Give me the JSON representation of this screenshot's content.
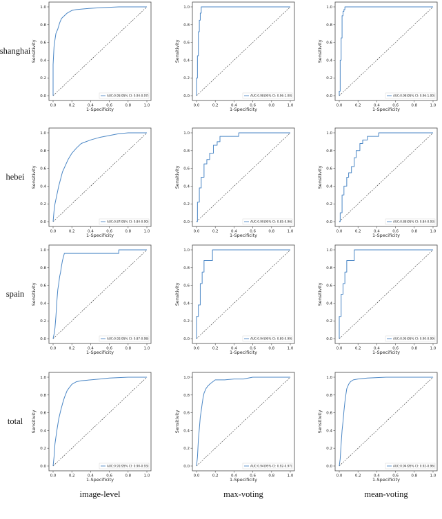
{
  "rows": [
    "shanghai",
    "hebei",
    "spain",
    "total"
  ],
  "columns": [
    "image-level",
    "max-voting",
    "mean-voting"
  ],
  "axes": {
    "xlabel": "1-Specificity",
    "ylabel": "Sensitivity",
    "xlim": [
      0,
      1
    ],
    "ylim": [
      0,
      1
    ],
    "ticks": [
      "0.0",
      "0.2",
      "0.4",
      "0.6",
      "0.8",
      "1.0"
    ]
  },
  "colors": {
    "roc": "#4a86c5",
    "diagonal": "#333333",
    "frame": "#444444"
  },
  "chart_data": [
    {
      "type": "line",
      "row": "shanghai",
      "column": "image-level",
      "legend": "AUC:0.95(95% CI: 0.94-0.97)",
      "legend_position": "lower-right",
      "series": [
        {
          "name": "AUC:0.95(95% CI: 0.94-0.97)",
          "x": [
            0,
            0,
            0.01,
            0.02,
            0.03,
            0.05,
            0.07,
            0.09,
            0.12,
            0.15,
            0.2,
            0.25,
            0.35,
            0.5,
            0.7,
            1
          ],
          "y": [
            0,
            0.35,
            0.55,
            0.63,
            0.7,
            0.75,
            0.82,
            0.87,
            0.9,
            0.93,
            0.96,
            0.97,
            0.98,
            0.99,
            1,
            1
          ]
        }
      ]
    },
    {
      "type": "line",
      "row": "shanghai",
      "column": "max-voting",
      "legend": "AUC:0.98(95% CI: 0.96-1.00)",
      "legend_position": "lower-right",
      "series": [
        {
          "name": "AUC:0.98(95% CI: 0.96-1.00)",
          "x": [
            0,
            0,
            0.01,
            0.01,
            0.02,
            0.02,
            0.03,
            0.03,
            0.04,
            0.04,
            0.05,
            0.05,
            0.06,
            1
          ],
          "y": [
            0,
            0.2,
            0.2,
            0.45,
            0.45,
            0.72,
            0.72,
            0.85,
            0.85,
            0.93,
            0.93,
            1,
            1,
            1
          ]
        }
      ]
    },
    {
      "type": "line",
      "row": "shanghai",
      "column": "mean-voting",
      "legend": "AUC:0.98(95% CI: 0.96-1.00)",
      "legend_position": "lower-right",
      "series": [
        {
          "name": "AUC:0.98(95% CI: 0.96-1.00)",
          "x": [
            0,
            0,
            0.01,
            0.01,
            0.02,
            0.02,
            0.03,
            0.03,
            0.04,
            0.04,
            0.05,
            0.05,
            0.06,
            0.06,
            1
          ],
          "y": [
            0,
            0.05,
            0.05,
            0.4,
            0.4,
            0.65,
            0.65,
            0.9,
            0.9,
            0.95,
            0.95,
            0.97,
            0.97,
            1,
            1
          ]
        }
      ]
    },
    {
      "type": "line",
      "row": "hebei",
      "column": "image-level",
      "legend": "AUC:0.87(95% CI: 0.84-0.90)",
      "legend_position": "lower-right",
      "series": [
        {
          "name": "AUC:0.87(95% CI: 0.84-0.90)",
          "x": [
            0,
            0.01,
            0.02,
            0.04,
            0.06,
            0.08,
            0.1,
            0.13,
            0.16,
            0.2,
            0.25,
            0.3,
            0.35,
            0.4,
            0.5,
            0.6,
            0.7,
            0.8,
            1
          ],
          "y": [
            0,
            0.12,
            0.2,
            0.3,
            0.4,
            0.48,
            0.56,
            0.63,
            0.7,
            0.77,
            0.83,
            0.88,
            0.9,
            0.92,
            0.95,
            0.97,
            0.99,
            1,
            1
          ]
        }
      ]
    },
    {
      "type": "line",
      "row": "hebei",
      "column": "max-voting",
      "legend": "AUC:0.90(95% CI: 0.85-0.96)",
      "legend_position": "lower-right",
      "series": [
        {
          "name": "AUC:0.90(95% CI: 0.85-0.96)",
          "x": [
            0,
            0.01,
            0.01,
            0.03,
            0.03,
            0.05,
            0.05,
            0.08,
            0.08,
            0.11,
            0.11,
            0.14,
            0.14,
            0.18,
            0.18,
            0.22,
            0.22,
            0.25,
            0.25,
            0.45,
            0.45,
            1
          ],
          "y": [
            0,
            0,
            0.22,
            0.22,
            0.38,
            0.38,
            0.5,
            0.5,
            0.65,
            0.65,
            0.7,
            0.7,
            0.77,
            0.77,
            0.86,
            0.86,
            0.9,
            0.9,
            0.96,
            0.96,
            1,
            1
          ]
        }
      ]
    },
    {
      "type": "line",
      "row": "hebei",
      "column": "mean-voting",
      "legend": "AUC:0.88(95% CI: 0.84-0.93)",
      "legend_position": "lower-right",
      "series": [
        {
          "name": "AUC:0.88(95% CI: 0.84-0.93)",
          "x": [
            0,
            0.01,
            0.01,
            0.03,
            0.03,
            0.05,
            0.05,
            0.08,
            0.08,
            0.1,
            0.1,
            0.13,
            0.13,
            0.16,
            0.16,
            0.18,
            0.18,
            0.22,
            0.22,
            0.25,
            0.25,
            0.3,
            0.3,
            0.42,
            0.42,
            1
          ],
          "y": [
            0,
            0,
            0.1,
            0.1,
            0.3,
            0.3,
            0.4,
            0.4,
            0.5,
            0.5,
            0.55,
            0.55,
            0.62,
            0.62,
            0.72,
            0.72,
            0.8,
            0.8,
            0.88,
            0.88,
            0.92,
            0.92,
            0.96,
            0.96,
            1,
            1
          ]
        }
      ]
    },
    {
      "type": "line",
      "row": "spain",
      "column": "image-level",
      "legend": "AUC:0.92(95% CI: 0.87-0.98)",
      "legend_position": "lower-right",
      "series": [
        {
          "name": "AUC:0.92(95% CI: 0.87-0.98)",
          "x": [
            0,
            0.01,
            0.02,
            0.03,
            0.04,
            0.05,
            0.06,
            0.07,
            0.08,
            0.09,
            0.1,
            0.11,
            0.12,
            0.7,
            0.7,
            1
          ],
          "y": [
            0,
            0.05,
            0.12,
            0.25,
            0.42,
            0.55,
            0.62,
            0.7,
            0.75,
            0.82,
            0.88,
            0.92,
            0.96,
            0.96,
            1,
            1
          ]
        }
      ]
    },
    {
      "type": "line",
      "row": "spain",
      "column": "max-voting",
      "legend": "AUC:0.94(95% CI: 0.89-0.99)",
      "legend_position": "lower-right",
      "series": [
        {
          "name": "AUC:0.94(95% CI: 0.89-0.99)",
          "x": [
            0,
            0,
            0.02,
            0.02,
            0.04,
            0.04,
            0.06,
            0.06,
            0.08,
            0.08,
            0.17,
            0.17,
            1
          ],
          "y": [
            0,
            0.25,
            0.25,
            0.38,
            0.38,
            0.62,
            0.62,
            0.75,
            0.75,
            0.88,
            0.88,
            1,
            1
          ]
        }
      ]
    },
    {
      "type": "line",
      "row": "spain",
      "column": "mean-voting",
      "legend": "AUC:0.95(95% CI: 0.90-0.99)",
      "legend_position": "lower-right",
      "series": [
        {
          "name": "AUC:0.95(95% CI: 0.90-0.99)",
          "x": [
            0,
            0,
            0.02,
            0.02,
            0.04,
            0.04,
            0.06,
            0.06,
            0.08,
            0.08,
            0.16,
            0.16,
            1
          ],
          "y": [
            0,
            0.25,
            0.25,
            0.5,
            0.5,
            0.62,
            0.62,
            0.75,
            0.75,
            0.88,
            0.88,
            1,
            1
          ]
        }
      ]
    },
    {
      "type": "line",
      "row": "total",
      "column": "image-level",
      "legend": "AUC:0.91(95% CI: 0.90-0.93)",
      "legend_position": "lower-right",
      "series": [
        {
          "name": "AUC:0.91(95% CI: 0.90-0.93)",
          "x": [
            0,
            0.01,
            0.02,
            0.04,
            0.06,
            0.08,
            0.1,
            0.12,
            0.15,
            0.2,
            0.25,
            0.3,
            0.4,
            0.5,
            0.6,
            0.8,
            1
          ],
          "y": [
            0,
            0.1,
            0.25,
            0.4,
            0.53,
            0.62,
            0.7,
            0.77,
            0.85,
            0.92,
            0.95,
            0.96,
            0.97,
            0.98,
            0.99,
            1,
            1
          ]
        }
      ]
    },
    {
      "type": "line",
      "row": "total",
      "column": "max-voting",
      "legend": "AUC:0.94(95% CI: 0.92-0.97)",
      "legend_position": "lower-right",
      "series": [
        {
          "name": "AUC:0.94(95% CI: 0.92-0.97)",
          "x": [
            0,
            0.01,
            0.02,
            0.03,
            0.04,
            0.05,
            0.06,
            0.07,
            0.08,
            0.1,
            0.12,
            0.15,
            0.2,
            0.3,
            0.4,
            0.5,
            0.6,
            1
          ],
          "y": [
            0,
            0.1,
            0.3,
            0.42,
            0.55,
            0.62,
            0.7,
            0.77,
            0.82,
            0.87,
            0.9,
            0.93,
            0.97,
            0.97,
            0.98,
            0.98,
            1,
            1
          ]
        }
      ]
    },
    {
      "type": "line",
      "row": "total",
      "column": "mean-voting",
      "legend": "AUC:0.94(95% CI: 0.92-0.96)",
      "legend_position": "lower-right",
      "series": [
        {
          "name": "AUC:0.94(95% CI: 0.92-0.96)",
          "x": [
            0,
            0.01,
            0.02,
            0.03,
            0.04,
            0.05,
            0.06,
            0.07,
            0.08,
            0.1,
            0.12,
            0.15,
            0.2,
            0.3,
            0.5,
            0.7,
            1
          ],
          "y": [
            0,
            0.08,
            0.25,
            0.4,
            0.5,
            0.62,
            0.72,
            0.8,
            0.87,
            0.92,
            0.95,
            0.97,
            0.98,
            0.99,
            1,
            1,
            1
          ]
        }
      ]
    }
  ]
}
